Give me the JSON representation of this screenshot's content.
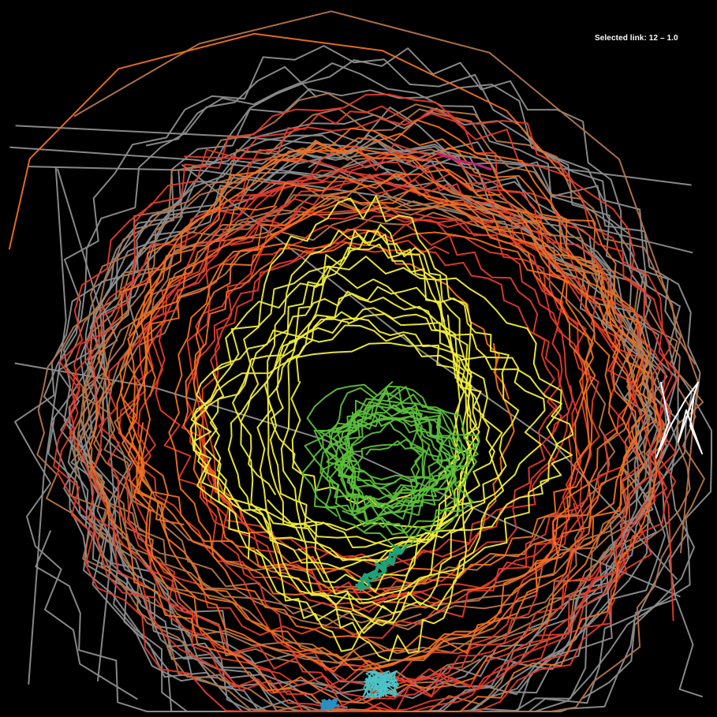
{
  "selected_link": "Selected link: 12 – 1.0",
  "palette": {
    "background": "#000000",
    "gray": "#8e8e8e",
    "brown": "#b5754a",
    "red": "#e23b2b",
    "orange": "#f07020",
    "yellow": "#f2ee3a",
    "green": "#5cbf3a",
    "teal": "#1fa27a",
    "cyan": "#4cc3c6",
    "blue": "#2a8fc2",
    "magenta": "#c2217a",
    "white": "#ffffff"
  }
}
